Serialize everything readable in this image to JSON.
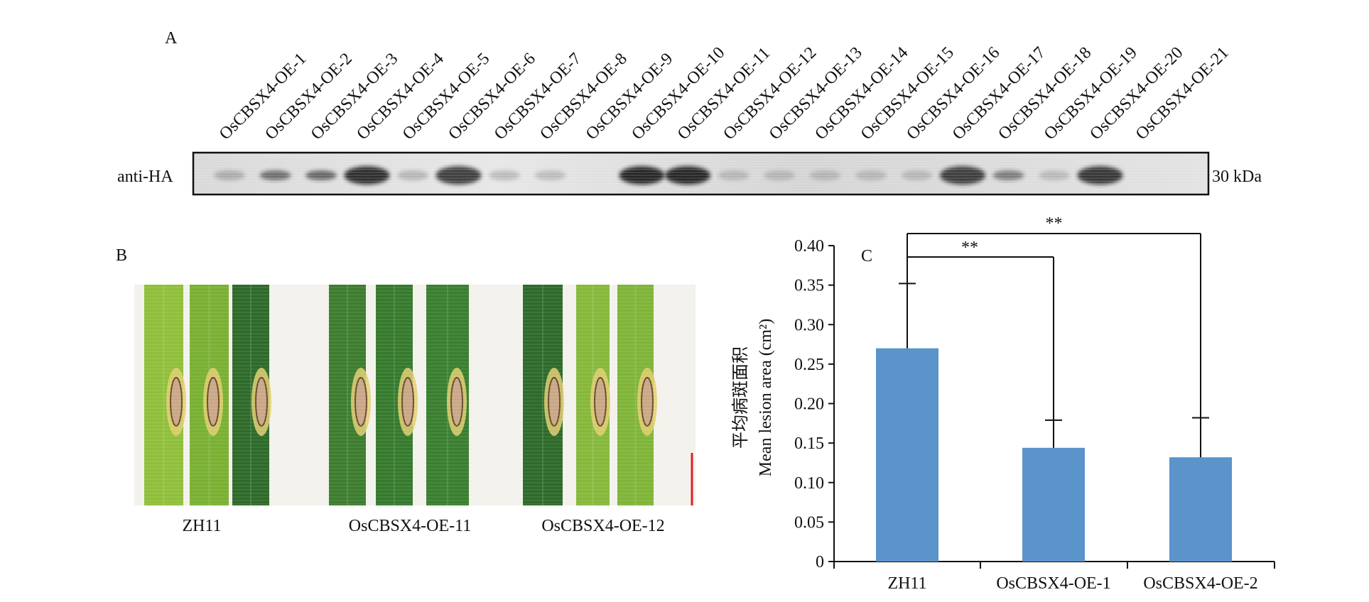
{
  "panel_a": {
    "label": "A",
    "lane_labels": [
      "OsCBSX4-OE-1",
      "OsCBSX4-OE-2",
      "OsCBSX4-OE-3",
      "OsCBSX4-OE-4",
      "OsCBSX4-OE-5",
      "OsCBSX4-OE-6",
      "OsCBSX4-OE-7",
      "OsCBSX4-OE-8",
      "OsCBSX4-OE-9",
      "OsCBSX4-OE-10",
      "OsCBSX4-OE-11",
      "OsCBSX4-OE-12",
      "OsCBSX4-OE-13",
      "OsCBSX4-OE-14",
      "OsCBSX4-OE-15",
      "OsCBSX4-OE-16",
      "OsCBSX4-OE-17",
      "OsCBSX4-OE-18",
      "OsCBSX4-OE-19",
      "OsCBSX4-OE-20",
      "OsCBSX4-OE-21"
    ],
    "antibody": "anti-HA",
    "size_marker": "30 kDa",
    "band_intensity": [
      0.12,
      0.55,
      0.6,
      0.95,
      0.1,
      0.85,
      0.08,
      0.06,
      0.0,
      1.0,
      1.0,
      0.05,
      0.05,
      0.05,
      0.05,
      0.05,
      0.85,
      0.45,
      0.05,
      0.9,
      0.0
    ]
  },
  "panel_b": {
    "label": "B",
    "groups": [
      "ZH11",
      "OsCBSX4-OE-11",
      "OsCBSX4-OE-12"
    ]
  },
  "colors": {
    "bar": "#5b93cb",
    "leaf_dark": "#2e6a2a",
    "leaf_light": "#8fbf3a",
    "scale_bar": "#e02020"
  },
  "chart_data": {
    "type": "bar",
    "panel_label": "C",
    "categories": [
      "ZH11",
      "OsCBSX4-OE-1",
      "OsCBSX4-OE-2"
    ],
    "values": [
      0.27,
      0.144,
      0.132
    ],
    "error": [
      0.082,
      0.035,
      0.05
    ],
    "ylabel_cn": "平均病斑面积",
    "ylabel": "Mean lesion area (cm²)",
    "ylim": [
      0,
      0.4
    ],
    "yticks": [
      "0",
      "0.05",
      "0.10",
      "0.15",
      "0.20",
      "0.25",
      "0.30",
      "0.35",
      "0.40"
    ],
    "significance": [
      {
        "from": "ZH11",
        "to": "OsCBSX4-OE-1",
        "label": "**"
      },
      {
        "from": "ZH11",
        "to": "OsCBSX4-OE-2",
        "label": "**"
      }
    ]
  }
}
